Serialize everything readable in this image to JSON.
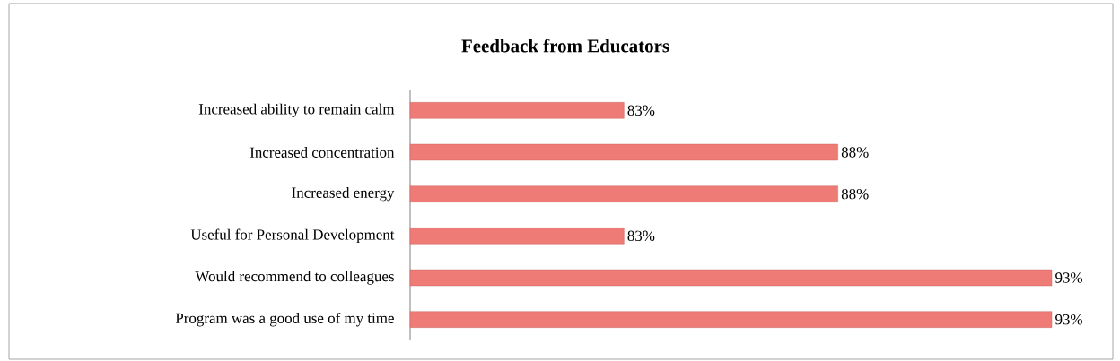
{
  "chart_data": {
    "type": "bar",
    "orientation": "horizontal",
    "title": "Feedback from Educators",
    "categories": [
      "Increased ability to remain calm",
      "Increased concentration",
      "Increased energy",
      "Useful for Personal Development",
      "Would recommend to colleagues",
      "Program was a good use of my time"
    ],
    "values": [
      83,
      88,
      88,
      83,
      93,
      93
    ],
    "value_labels": [
      "83%",
      "88%",
      "88%",
      "83%",
      "93%",
      "93%"
    ],
    "color": "#ee7b76",
    "xlim": [
      78,
      93
    ]
  }
}
